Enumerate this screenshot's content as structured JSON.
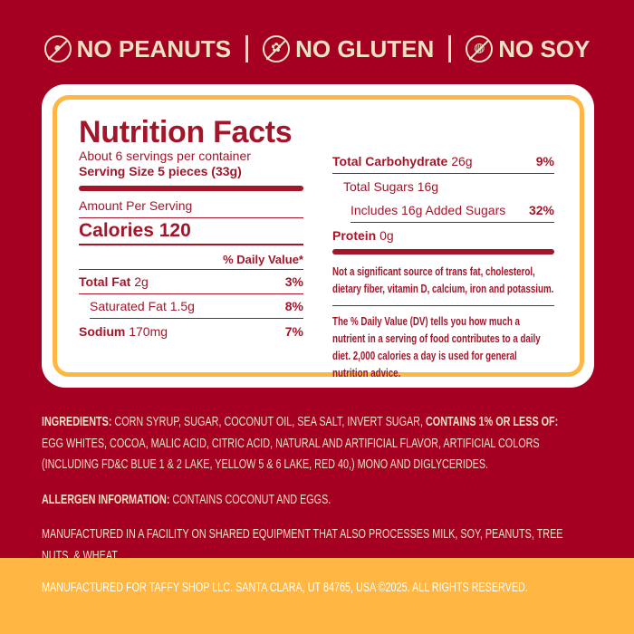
{
  "claims": [
    {
      "label": "NO PEANUTS",
      "icon": "no-peanuts-icon"
    },
    {
      "label": "NO GLUTEN",
      "icon": "no-gluten-icon"
    },
    {
      "label": "NO SOY",
      "icon": "no-soy-icon"
    }
  ],
  "colors": {
    "background": "#A50021",
    "accent": "#FFB642",
    "text_red": "#A3162A",
    "cream": "#EDE3C3"
  },
  "nutrition": {
    "title": "Nutrition Facts",
    "servings": "About 6 servings per container",
    "serving_size": "Serving Size 5 pieces (33g)",
    "amount_per_serving": "Amount Per Serving",
    "calories": "Calories 120",
    "dv_header": "% Daily Value*",
    "rows": [
      {
        "name": "Total Fat",
        "amount": "2g",
        "dv": "3%"
      },
      {
        "name": "Saturated Fat",
        "amount": "1.5g",
        "dv": "8%"
      },
      {
        "name": "Sodium",
        "amount": "170mg",
        "dv": "7%"
      },
      {
        "name": "Total Carbohydrate",
        "amount": "26g",
        "dv": "9%"
      },
      {
        "name": "Total Sugars",
        "amount": "16g",
        "dv": ""
      },
      {
        "name": "Includes 16g Added Sugars",
        "amount": "",
        "dv": "32%"
      },
      {
        "name": "Protein",
        "amount": "0g",
        "dv": ""
      }
    ],
    "note1": "Not a significant source of trans fat, cholesterol, dietary fiber, vitamin D, calcium, iron and potassium.",
    "note2": "The % Daily Value (DV) tells you how much a nutrient in a serving of food contributes to a daily diet. 2,000 calories a day is used for general nutrition advice."
  },
  "ingredients": {
    "label": "INGREDIENTS:",
    "text1": " CORN SYRUP, SUGAR, COCONUT OIL, SEA SALT, INVERT SUGAR, ",
    "label2": "CONTAINS 1% OR LESS OF:",
    "text2": " EGG WHITES, COCOA, MALIC ACID, CITRIC ACID, NATURAL AND ARTIFICIAL FLAVOR, ARTIFICIAL COLORS (INCLUDING FD&C BLUE 1 & 2 LAKE, YELLOW 5 & 6 LAKE, RED 40,) MONO AND DIGLYCERIDES."
  },
  "allergen": {
    "label": "ALLERGEN INFORMATION:",
    "text": " CONTAINS COCONUT AND EGGS."
  },
  "facility": "MANUFACTURED IN A FACILITY ON SHARED EQUIPMENT THAT ALSO PROCESSES MILK, SOY, PEANUTS, TREE NUTS, & WHEAT.",
  "footer": "MANUFACTURED FOR TAFFY SHOP LLC. SANTA CLARA, UT 84765, USA ©2025. ALL RIGHTS RESERVED."
}
